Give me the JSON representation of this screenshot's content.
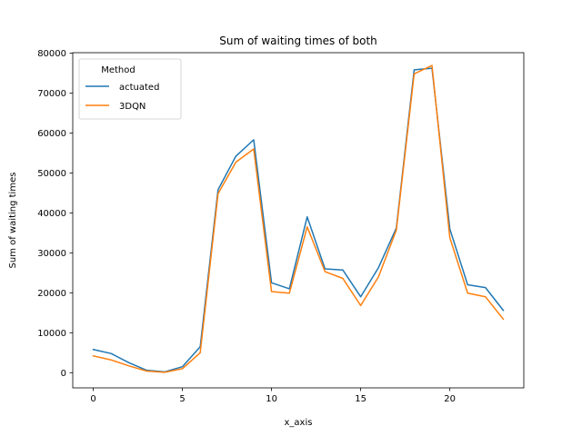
{
  "chart_data": {
    "type": "line",
    "title": "Sum of waiting times of both",
    "xlabel": "x_axis",
    "ylabel": "Sum of waiting times",
    "xlim": [
      -1.15,
      24.15
    ],
    "ylim": [
      -3800,
      80100
    ],
    "x_ticks": [
      0,
      5,
      10,
      15,
      20
    ],
    "y_ticks": [
      0,
      10000,
      20000,
      30000,
      40000,
      50000,
      60000,
      70000,
      80000
    ],
    "grid": false,
    "legend": {
      "title": "Method",
      "placement": "upper-left"
    },
    "x": [
      0,
      1,
      2,
      3,
      4,
      5,
      6,
      7,
      8,
      9,
      10,
      11,
      12,
      13,
      14,
      15,
      16,
      17,
      18,
      19,
      20,
      21,
      22,
      23
    ],
    "series": [
      {
        "name": "actuated",
        "color": "#1f77b4",
        "values": [
          5800,
          4800,
          2500,
          600,
          200,
          1500,
          6500,
          45800,
          54200,
          58300,
          22500,
          21000,
          39000,
          26000,
          25700,
          19000,
          26300,
          36200,
          75800,
          76200,
          36000,
          22000,
          21300,
          15600
        ]
      },
      {
        "name": "3DQN",
        "color": "#ff7f0e",
        "values": [
          4200,
          3200,
          1700,
          400,
          100,
          1000,
          5000,
          44800,
          52700,
          56000,
          20300,
          19900,
          36500,
          25300,
          23600,
          16800,
          24000,
          35700,
          74800,
          76900,
          33800,
          19900,
          19000,
          13400
        ]
      }
    ]
  }
}
